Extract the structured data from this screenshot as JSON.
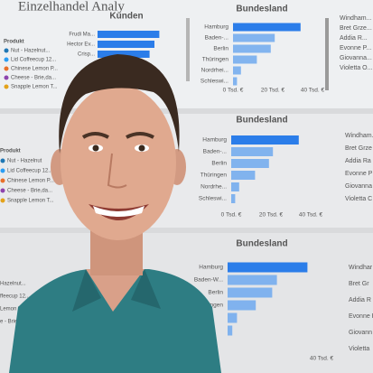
{
  "header": {
    "title": "Einzelhandel Analy"
  },
  "legend_panels": [
    {
      "title": "Produkt",
      "items": [
        {
          "label": "Nut - Hazelnut...",
          "color": "#1f77b4"
        },
        {
          "label": "Lid Coffeecup 12...",
          "color": "#2a9df4"
        },
        {
          "label": "Chinese Lemon P...",
          "color": "#e8702a"
        },
        {
          "label": "Cheese - Brie,da...",
          "color": "#8e44ad"
        },
        {
          "label": "Snapple Lemon T...",
          "color": "#e3a21a"
        }
      ]
    },
    {
      "title": "Produkt",
      "items": [
        {
          "label": "Nut - Hazelnut",
          "color": "#1f77b4"
        },
        {
          "label": "Lid Coffeecup 12...",
          "color": "#2a9df4"
        },
        {
          "label": "Chinese Lemon P...",
          "color": "#e8702a"
        },
        {
          "label": "Cheese - Brie,da...",
          "color": "#8e44ad"
        },
        {
          "label": "Snapple Lemon T...",
          "color": "#e3a21a"
        }
      ]
    },
    {
      "title": null,
      "items": [
        {
          "label": "Hazelnut...",
          "color": "#1f77b4"
        },
        {
          "label": "ffeecup 12...",
          "color": "#2a9df4"
        },
        {
          "label": "Lemon P...",
          "color": "#e8702a"
        },
        {
          "label": "e - Brie,da...",
          "color": "#8e44ad"
        }
      ]
    }
  ],
  "kunden": {
    "title": "Kunden",
    "categories": [
      "Frudi Ma...",
      "Hector Ev...",
      "Crisp..."
    ],
    "values": [
      38,
      35,
      32
    ],
    "xlim": [
      0,
      40
    ],
    "color": "#2b7de9"
  },
  "bundesland_panels": [
    {
      "title": "Bundesland",
      "categories": [
        "Hamburg",
        "Baden-...",
        "Berlin",
        "Thüringen",
        "Nordrhei...",
        "Schleswi..."
      ],
      "values": [
        34,
        21,
        19,
        12,
        4,
        2
      ],
      "xlim": [
        0,
        40
      ],
      "xticks": [
        {
          "value": 0,
          "label": "0 Tsd. €"
        },
        {
          "value": 20,
          "label": "20 Tsd. €"
        },
        {
          "value": 40,
          "label": "40 Tsd. €"
        }
      ],
      "color": "#2b7de9"
    },
    {
      "title": "Bundesland",
      "categories": [
        "Hamburg",
        "Baden-...",
        "Berlin",
        "Thüringen",
        "Nordrhe...",
        "Schleswi..."
      ],
      "values": [
        34,
        21,
        19,
        12,
        4,
        2
      ],
      "xlim": [
        0,
        40
      ],
      "xticks": [
        {
          "value": 0,
          "label": "0 Tsd. €"
        },
        {
          "value": 20,
          "label": "20 Tsd. €"
        },
        {
          "value": 40,
          "label": "40 Tsd. €"
        }
      ],
      "color": "#2b7de9"
    },
    {
      "title": "Bundesland",
      "categories": [
        "Hamburg",
        "Baden-W...",
        "Berlin",
        "ringen",
        null,
        null
      ],
      "values": [
        34,
        21,
        19,
        12,
        4,
        2
      ],
      "xlim": [
        0,
        40
      ],
      "xticks": [
        {
          "value": 40,
          "label": "40 Tsd. €"
        }
      ],
      "color": "#2b7de9"
    }
  ],
  "name_panels": [
    [
      "Windham...",
      "Bret Grze...",
      "Addia R...",
      "Evonne P...",
      "Giovanna...",
      "Violetta O..."
    ],
    [
      "Windham...",
      "Bret Grze",
      "Addia Ra",
      "Evonne P",
      "Giovanna",
      "Violetta C"
    ],
    [
      "Windhar",
      "Bret Gr",
      "Addia R",
      "Evonne P",
      "Giovann",
      "Violetta"
    ]
  ]
}
